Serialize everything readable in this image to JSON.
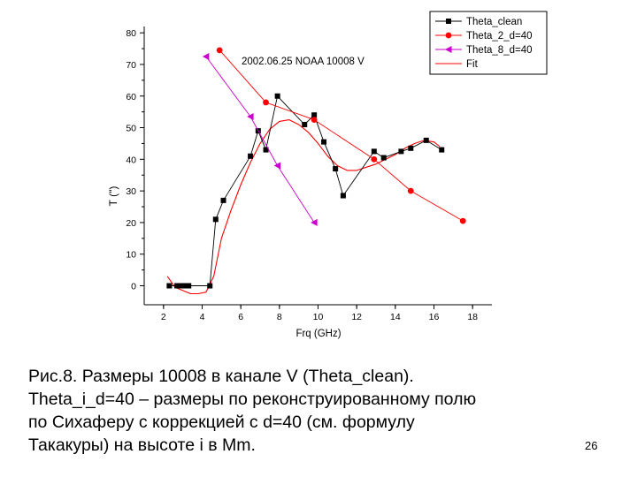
{
  "chart_data": {
    "type": "line",
    "annotation": "2002.06.25 NOAA 10008 V",
    "xlabel": "Frq (GHz)",
    "ylabel": "T (\")",
    "xlim": [
      1,
      19
    ],
    "ylim": [
      -6,
      82
    ],
    "xticks": [
      2,
      4,
      6,
      8,
      10,
      12,
      14,
      16,
      18
    ],
    "yticks": [
      0,
      10,
      20,
      30,
      40,
      50,
      60,
      70,
      80
    ],
    "legend_position": "top-right",
    "series": [
      {
        "name": "Theta_clean",
        "color": "#000000",
        "marker": "square",
        "x": [
          2.3,
          2.7,
          2.9,
          3.1,
          3.3,
          4.4,
          4.7,
          5.1,
          6.5,
          6.9,
          7.3,
          7.9,
          9.3,
          9.8,
          10.3,
          10.9,
          11.3,
          12.9,
          13.4,
          14.3,
          14.8,
          15.6,
          16.4
        ],
        "y": [
          0,
          0,
          0,
          0,
          0,
          0,
          21,
          27,
          41,
          49,
          43,
          60,
          51,
          54,
          45.5,
          37,
          28.5,
          42.5,
          40.5,
          42.5,
          43.5,
          46,
          43
        ]
      },
      {
        "name": "Theta_2_d=40",
        "color": "#ff0000",
        "marker": "circle",
        "x": [
          4.9,
          7.3,
          9.8,
          12.9,
          14.8,
          17.5
        ],
        "y": [
          74.5,
          58,
          52.5,
          40,
          30,
          20.5
        ]
      },
      {
        "name": "Theta_8_d=40",
        "color": "#cc00cc",
        "marker": "triangle-left",
        "x": [
          4.2,
          6.5,
          7.9,
          9.8
        ],
        "y": [
          72.5,
          53.5,
          38,
          20
        ]
      },
      {
        "name": "Fit",
        "color": "#ff0000",
        "marker": "none",
        "x": [
          2.2,
          2.6,
          3.0,
          3.4,
          3.8,
          4.2,
          4.6,
          5.0,
          5.5,
          6.0,
          6.5,
          7.0,
          7.5,
          8.0,
          8.5,
          9.0,
          9.5,
          10.0,
          10.5,
          11.0,
          11.5,
          12.0,
          12.5,
          13.0,
          13.5,
          14.0,
          14.5,
          15.0,
          15.5,
          16.0,
          16.3
        ],
        "y": [
          3,
          -0.5,
          -1.5,
          -2.5,
          -2.5,
          -2,
          3,
          15,
          24,
          32,
          39,
          45,
          49.5,
          52,
          52.5,
          51,
          48.5,
          45,
          41,
          38,
          36.5,
          36.5,
          37.5,
          38.5,
          40,
          41.5,
          43.5,
          45,
          46,
          45.5,
          44
        ]
      }
    ]
  },
  "caption": {
    "lines": [
      "Рис.8. Размеры 10008 в канале V (Theta_clean).",
      "Theta_i_d=40 – размеры по реконструированному полю",
      "по Сихаферу с коррекцией с d=40 (см. формулу",
      "Такакуры) на высоте i в Mm."
    ]
  },
  "page_number": "26"
}
